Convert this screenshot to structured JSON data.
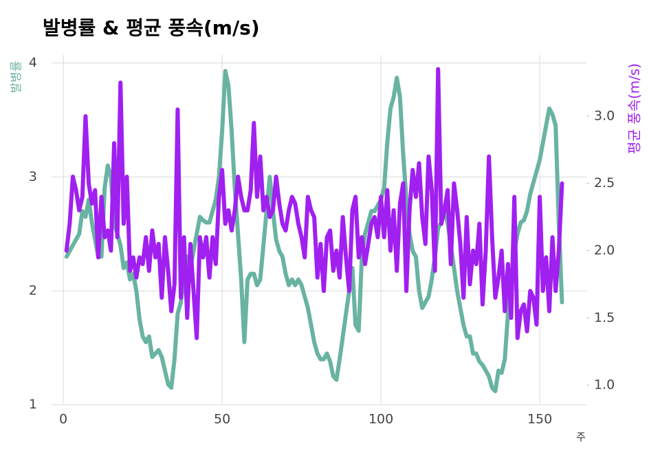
{
  "chart_data": {
    "type": "line",
    "title": "발병률 & 평균 풍속(m/s)",
    "xlabel": "주",
    "ylabel": "발병률",
    "y2label": "평균 풍속(m/s)",
    "x": [
      1,
      2,
      3,
      4,
      5,
      6,
      7,
      8,
      9,
      10,
      11,
      12,
      13,
      14,
      15,
      16,
      17,
      18,
      19,
      20,
      21,
      22,
      23,
      24,
      25,
      26,
      27,
      28,
      29,
      30,
      31,
      32,
      33,
      34,
      35,
      36,
      37,
      38,
      39,
      40,
      41,
      42,
      43,
      44,
      45,
      46,
      47,
      48,
      49,
      50,
      51,
      52,
      53,
      54,
      55,
      56,
      57,
      58,
      59,
      60,
      61,
      62,
      63,
      64,
      65,
      66,
      67,
      68,
      69,
      70,
      71,
      72,
      73,
      74,
      75,
      76,
      77,
      78,
      79,
      80,
      81,
      82,
      83,
      84,
      85,
      86,
      87,
      88,
      89,
      90,
      91,
      92,
      93,
      94,
      95,
      96,
      97,
      98,
      99,
      100,
      101,
      102,
      103,
      104,
      105,
      106,
      107,
      108,
      109,
      110,
      111,
      112,
      113,
      114,
      115,
      116,
      117,
      118,
      119,
      120,
      121,
      122,
      123,
      124,
      125,
      126,
      127,
      128,
      129,
      130,
      131,
      132,
      133,
      134,
      135,
      136,
      137,
      138,
      139,
      140,
      141,
      142,
      143,
      144,
      145,
      146,
      147,
      148,
      149,
      150,
      151,
      152,
      153,
      154,
      155,
      156,
      157
    ],
    "series": [
      {
        "color": "#69b3a2",
        "values": [
          2.3,
          2.35,
          2.4,
          2.45,
          2.5,
          2.7,
          2.65,
          2.8,
          2.6,
          2.45,
          2.3,
          2.3,
          2.9,
          3.1,
          3.0,
          2.6,
          2.5,
          2.4,
          2.2,
          2.25,
          2.1,
          2.15,
          2.0,
          1.75,
          1.6,
          1.55,
          1.6,
          1.42,
          1.45,
          1.48,
          1.42,
          1.3,
          1.18,
          1.15,
          1.4,
          1.8,
          1.9,
          2.1,
          2.3,
          2.2,
          2.35,
          2.5,
          2.65,
          2.62,
          2.6,
          2.6,
          2.7,
          2.8,
          3.0,
          3.4,
          3.93,
          3.8,
          3.4,
          2.9,
          2.5,
          2.1,
          1.55,
          2.1,
          2.15,
          2.15,
          2.05,
          2.1,
          2.4,
          2.7,
          3.0,
          2.7,
          2.45,
          2.35,
          2.3,
          2.15,
          2.05,
          2.1,
          2.05,
          2.1,
          2.05,
          1.95,
          1.85,
          1.7,
          1.55,
          1.45,
          1.4,
          1.4,
          1.45,
          1.38,
          1.25,
          1.22,
          1.4,
          1.6,
          1.8,
          2.0,
          2.2,
          1.7,
          1.65,
          2.3,
          2.5,
          2.6,
          2.7,
          2.7,
          2.75,
          2.8,
          2.9,
          3.3,
          3.6,
          3.7,
          3.87,
          3.7,
          3.2,
          2.8,
          2.5,
          2.35,
          2.3,
          2.0,
          1.85,
          1.9,
          1.95,
          2.1,
          2.3,
          2.55,
          2.6,
          2.7,
          2.6,
          2.4,
          2.2,
          2.0,
          1.85,
          1.7,
          1.6,
          1.6,
          1.45,
          1.45,
          1.38,
          1.35,
          1.3,
          1.25,
          1.15,
          1.12,
          1.3,
          1.28,
          1.4,
          1.8,
          2.1,
          2.35,
          2.5,
          2.6,
          2.62,
          2.7,
          2.85,
          2.95,
          3.05,
          3.15,
          3.3,
          3.45,
          3.6,
          3.55,
          3.45,
          2.6,
          1.9
        ]
      },
      {
        "color": "#a020f0",
        "axis": "y2",
        "values": [
          2.0,
          2.2,
          2.55,
          2.45,
          2.3,
          2.4,
          3.0,
          2.5,
          2.35,
          2.45,
          1.95,
          2.4,
          2.1,
          2.15,
          2.0,
          2.8,
          2.1,
          3.25,
          2.2,
          2.55,
          1.85,
          1.95,
          1.8,
          1.95,
          1.9,
          2.1,
          1.85,
          2.15,
          1.95,
          2.05,
          1.65,
          2.1,
          1.85,
          1.55,
          1.75,
          3.05,
          1.65,
          2.1,
          1.5,
          2.05,
          1.7,
          1.35,
          2.1,
          1.95,
          2.1,
          1.8,
          2.1,
          1.9,
          2.4,
          2.6,
          2.2,
          2.3,
          2.15,
          2.3,
          2.55,
          2.4,
          2.3,
          2.3,
          2.45,
          2.95,
          2.4,
          2.7,
          2.3,
          2.4,
          2.25,
          2.3,
          2.55,
          2.35,
          2.2,
          2.15,
          2.3,
          2.4,
          2.35,
          2.2,
          2.1,
          1.95,
          2.4,
          2.3,
          2.25,
          1.8,
          2.05,
          1.7,
          2.1,
          2.15,
          1.85,
          2.0,
          1.8,
          2.25,
          1.95,
          1.7,
          2.3,
          2.4,
          1.95,
          2.1,
          1.9,
          2.05,
          2.2,
          2.25,
          2.1,
          2.4,
          2.1,
          2.45,
          2.0,
          2.3,
          1.85,
          2.35,
          2.5,
          1.7,
          2.3,
          2.6,
          2.4,
          2.65,
          2.25,
          2.05,
          2.7,
          2.45,
          1.85,
          3.35,
          2.2,
          2.3,
          2.45,
          1.9,
          2.5,
          2.3,
          2.05,
          1.65,
          2.25,
          1.75,
          2.0,
          1.9,
          2.2,
          1.6,
          2.0,
          2.7,
          2.1,
          1.65,
          1.8,
          2.0,
          1.55,
          1.9,
          1.5,
          2.4,
          1.35,
          1.55,
          1.6,
          1.4,
          1.7,
          1.65,
          1.45,
          2.4,
          1.7,
          1.95,
          1.55,
          2.1,
          1.7,
          2.0,
          2.5
        ]
      }
    ],
    "xlim": [
      -3.7,
      164.7
    ],
    "xticks": [
      0,
      50,
      100,
      150
    ],
    "ylim": [
      1.01,
      4.07
    ],
    "yticks": [
      1,
      2,
      3,
      4
    ],
    "y2lim": [
      0.862,
      3.455
    ],
    "y2ticks": [
      {
        "value": 1.0,
        "label": "1.0"
      },
      1.5,
      {
        "value": 2.0,
        "label": "2.0"
      },
      2.5,
      {
        "value": 3.0,
        "label": "3.0"
      }
    ],
    "grid": true
  }
}
